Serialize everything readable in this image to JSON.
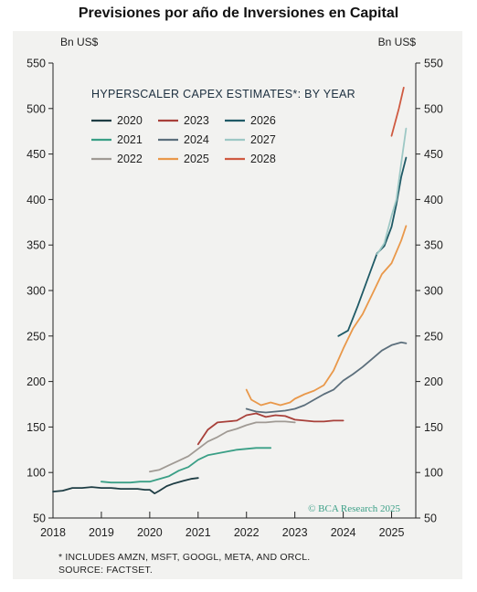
{
  "page_title": "Previsiones por año de Inversiones en Capital",
  "footnotes": {
    "line1": "* INCLUDES AMZN, MSFT, GOOGL, META, AND ORCL.",
    "line2": "SOURCE: FACTSET."
  },
  "chart_data": {
    "type": "line",
    "title": "HYPERSCALER CAPEX ESTIMATES*: BY YEAR",
    "unit_left": "Bn US$",
    "unit_right": "Bn US$",
    "credit": "© BCA Research 2025",
    "ylim": [
      50,
      550
    ],
    "yticks": [
      50,
      100,
      150,
      200,
      250,
      300,
      350,
      400,
      450,
      500,
      550
    ],
    "xlim": [
      2018,
      2025.5
    ],
    "xticks": [
      2018,
      2019,
      2020,
      2021,
      2022,
      2023,
      2024,
      2025
    ],
    "grid": false,
    "legend_position": "top-left",
    "series": [
      {
        "name": "2020",
        "color": "#1e3d44",
        "points": [
          [
            2018.0,
            79
          ],
          [
            2018.2,
            80
          ],
          [
            2018.4,
            83
          ],
          [
            2018.6,
            83
          ],
          [
            2018.8,
            84
          ],
          [
            2019.0,
            83
          ],
          [
            2019.2,
            83
          ],
          [
            2019.4,
            82
          ],
          [
            2019.6,
            82
          ],
          [
            2019.75,
            82
          ],
          [
            2019.9,
            81
          ],
          [
            2020.0,
            81
          ],
          [
            2020.1,
            77
          ],
          [
            2020.2,
            80
          ],
          [
            2020.35,
            85
          ],
          [
            2020.5,
            88
          ],
          [
            2020.7,
            91
          ],
          [
            2020.85,
            93
          ],
          [
            2021.0,
            94
          ]
        ]
      },
      {
        "name": "2021",
        "color": "#3a9f86",
        "points": [
          [
            2019.0,
            90
          ],
          [
            2019.2,
            89
          ],
          [
            2019.4,
            89
          ],
          [
            2019.6,
            89
          ],
          [
            2019.8,
            90
          ],
          [
            2020.0,
            90
          ],
          [
            2020.2,
            93
          ],
          [
            2020.4,
            96
          ],
          [
            2020.6,
            102
          ],
          [
            2020.8,
            106
          ],
          [
            2021.0,
            114
          ],
          [
            2021.2,
            119
          ],
          [
            2021.4,
            121
          ],
          [
            2021.6,
            123
          ],
          [
            2021.8,
            125
          ],
          [
            2022.0,
            126
          ],
          [
            2022.2,
            127
          ],
          [
            2022.5,
            127
          ]
        ]
      },
      {
        "name": "2022",
        "color": "#a09a94",
        "points": [
          [
            2020.0,
            101
          ],
          [
            2020.2,
            103
          ],
          [
            2020.4,
            108
          ],
          [
            2020.6,
            113
          ],
          [
            2020.8,
            118
          ],
          [
            2021.0,
            126
          ],
          [
            2021.2,
            134
          ],
          [
            2021.4,
            139
          ],
          [
            2021.6,
            145
          ],
          [
            2021.8,
            148
          ],
          [
            2022.0,
            152
          ],
          [
            2022.2,
            155
          ],
          [
            2022.4,
            155
          ],
          [
            2022.6,
            156
          ],
          [
            2022.8,
            156
          ],
          [
            2023.0,
            155
          ]
        ]
      },
      {
        "name": "2023",
        "color": "#a8403a",
        "points": [
          [
            2021.0,
            131
          ],
          [
            2021.2,
            147
          ],
          [
            2021.4,
            155
          ],
          [
            2021.6,
            156
          ],
          [
            2021.8,
            157
          ],
          [
            2022.0,
            163
          ],
          [
            2022.2,
            165
          ],
          [
            2022.4,
            161
          ],
          [
            2022.6,
            163
          ],
          [
            2022.8,
            162
          ],
          [
            2023.0,
            158
          ],
          [
            2023.2,
            157
          ],
          [
            2023.4,
            156
          ],
          [
            2023.6,
            156
          ],
          [
            2023.8,
            157
          ],
          [
            2024.0,
            157
          ]
        ]
      },
      {
        "name": "2024",
        "color": "#5c6f7c",
        "points": [
          [
            2022.0,
            170
          ],
          [
            2022.2,
            167
          ],
          [
            2022.4,
            166
          ],
          [
            2022.6,
            167
          ],
          [
            2022.8,
            168
          ],
          [
            2023.0,
            170
          ],
          [
            2023.2,
            174
          ],
          [
            2023.4,
            180
          ],
          [
            2023.6,
            186
          ],
          [
            2023.8,
            191
          ],
          [
            2024.0,
            201
          ],
          [
            2024.2,
            208
          ],
          [
            2024.4,
            216
          ],
          [
            2024.6,
            225
          ],
          [
            2024.8,
            234
          ],
          [
            2025.0,
            240
          ],
          [
            2025.2,
            243
          ],
          [
            2025.3,
            242
          ]
        ]
      },
      {
        "name": "2025",
        "color": "#e9984a",
        "points": [
          [
            2022.0,
            191
          ],
          [
            2022.1,
            180
          ],
          [
            2022.3,
            174
          ],
          [
            2022.5,
            177
          ],
          [
            2022.7,
            174
          ],
          [
            2022.9,
            177
          ],
          [
            2023.0,
            181
          ],
          [
            2023.2,
            186
          ],
          [
            2023.4,
            190
          ],
          [
            2023.6,
            196
          ],
          [
            2023.8,
            212
          ],
          [
            2024.0,
            236
          ],
          [
            2024.2,
            258
          ],
          [
            2024.4,
            274
          ],
          [
            2024.6,
            296
          ],
          [
            2024.8,
            318
          ],
          [
            2025.0,
            330
          ],
          [
            2025.2,
            355
          ],
          [
            2025.3,
            371
          ]
        ]
      },
      {
        "name": "2026",
        "color": "#1f5a66",
        "points": [
          [
            2023.9,
            250
          ],
          [
            2024.1,
            256
          ],
          [
            2024.3,
            283
          ],
          [
            2024.5,
            312
          ],
          [
            2024.7,
            341
          ],
          [
            2024.85,
            349
          ],
          [
            2025.0,
            370
          ],
          [
            2025.1,
            395
          ],
          [
            2025.2,
            425
          ],
          [
            2025.3,
            446
          ]
        ]
      },
      {
        "name": "2027",
        "color": "#9dc8c5",
        "points": [
          [
            2024.7,
            340
          ],
          [
            2024.85,
            352
          ],
          [
            2025.0,
            382
          ],
          [
            2025.1,
            400
          ],
          [
            2025.2,
            440
          ],
          [
            2025.3,
            478
          ]
        ]
      },
      {
        "name": "2028",
        "color": "#cf5a41",
        "points": [
          [
            2025.0,
            470
          ],
          [
            2025.15,
            500
          ],
          [
            2025.25,
            523
          ]
        ]
      }
    ]
  }
}
